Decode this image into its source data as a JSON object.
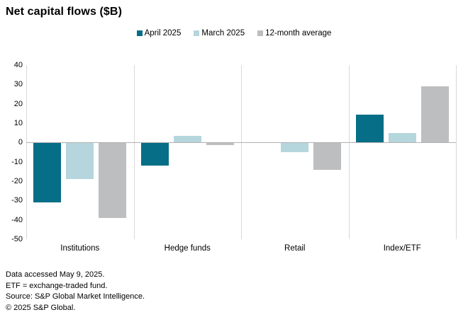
{
  "title": "Net capital flows ($B)",
  "chart_data": {
    "type": "bar",
    "title": "Net capital flows ($B)",
    "categories": [
      "Institutions",
      "Hedge funds",
      "Retail",
      "Index/ETF"
    ],
    "series": [
      {
        "name": "April 2025",
        "color": "#066e87",
        "values": [
          -31,
          -12,
          -0.4,
          14.5
        ]
      },
      {
        "name": "March 2025",
        "color": "#b5d6dd",
        "values": [
          -19,
          3.5,
          -5,
          5
        ]
      },
      {
        "name": "12-month average",
        "color": "#bdbebf",
        "values": [
          -39,
          -1.5,
          -14,
          29
        ]
      }
    ],
    "ylim": [
      -50,
      40
    ],
    "yticks": [
      40,
      30,
      20,
      10,
      0,
      -10,
      -20,
      -30,
      -40,
      -50
    ],
    "grid": false,
    "legend_position": "top-center",
    "axis_line_color": "#d9d9d9",
    "zero_line_color": "#b1b1b1"
  },
  "footer": {
    "lines": [
      "Data accessed May 9, 2025.",
      "ETF = exchange-traded fund.",
      "Source: S&P Global Market Intelligence.",
      "© 2025 S&P Global."
    ]
  }
}
